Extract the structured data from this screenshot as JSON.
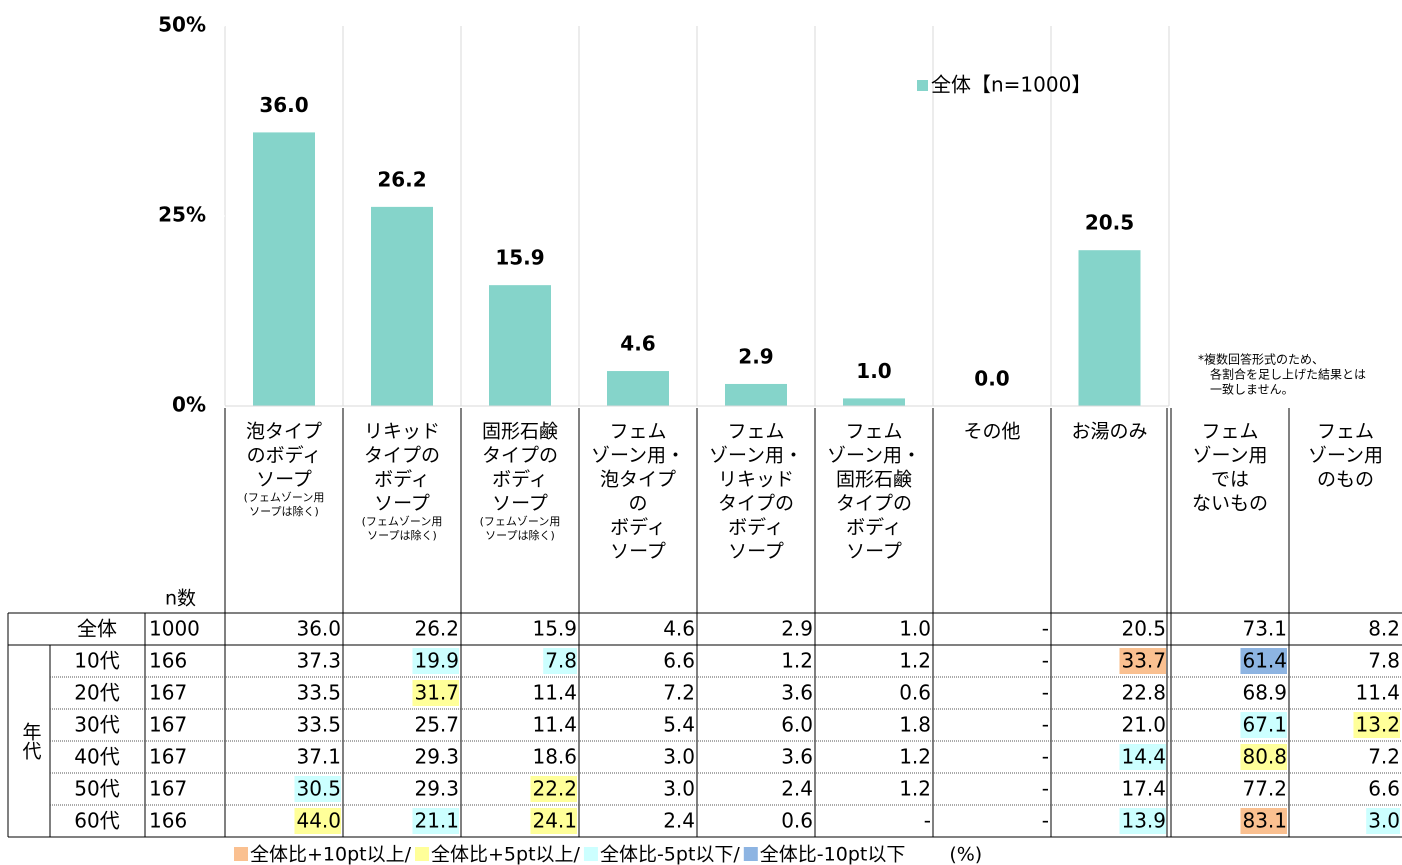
{
  "chart_data": {
    "type": "bar",
    "categories": [
      [
        "泡タイプ",
        "のボディ",
        "ソープ"
      ],
      [
        "リキッド",
        "タイプの",
        "ボディ",
        "ソープ"
      ],
      [
        "固形石鹸",
        "タイプの",
        "ボディ",
        "ソープ"
      ],
      [
        "フェム",
        "ゾーン用・",
        "泡タイプ",
        "の",
        "ボディ",
        "ソープ"
      ],
      [
        "フェム",
        "ゾーン用・",
        "リキッド",
        "タイプの",
        "ボディ",
        "ソープ"
      ],
      [
        "フェム",
        "ゾーン用・",
        "固形石鹸",
        "タイプの",
        "ボディ",
        "ソープ"
      ],
      [
        "その他"
      ],
      [
        "お湯のみ"
      ]
    ],
    "category_notes": [
      [
        "(フェムゾーン用",
        "ソープは除く)"
      ],
      [
        "(フェムゾーン用",
        "ソープは除く)"
      ],
      [
        "(フェムゾーン用",
        "ソープは除く)"
      ],
      null,
      null,
      null,
      null,
      null
    ],
    "series": [
      {
        "name": "全体【n=1000】",
        "color": "#85d4ca",
        "values": [
          36,
          26.2,
          15.9,
          4.6,
          2.9,
          1,
          0,
          20.5
        ],
        "value_labels": [
          "36.0",
          "26.2",
          "15.9",
          "4.6",
          "2.9",
          "1.0",
          "0.0",
          "20.5"
        ]
      }
    ],
    "ylim": [
      0,
      50
    ],
    "yticks": [
      {
        "value": 0,
        "label": "0%"
      },
      {
        "value": 25,
        "label": "25%"
      },
      {
        "value": 50,
        "label": "50%"
      }
    ],
    "grid": true,
    "legend": "top-right",
    "note": [
      "*複数回答形式のため、",
      "各割合を足し上げた結果とは",
      "一致しません。"
    ]
  },
  "table": {
    "extra_columns": [
      [
        "フェム",
        "ゾーン用",
        "では",
        "ないもの"
      ],
      [
        "フェム",
        "ゾーン用",
        "のもの"
      ]
    ],
    "n_header": "n数",
    "group_label": "年代",
    "rows": [
      {
        "label": "全体",
        "n": "1000",
        "values": [
          "36.0",
          "26.2",
          "15.9",
          "4.6",
          "2.9",
          "1.0",
          "-",
          "20.5",
          "73.1",
          "8.2"
        ],
        "fills": [
          null,
          null,
          null,
          null,
          null,
          null,
          null,
          null,
          null,
          null
        ]
      },
      {
        "label": "10代",
        "n": "166",
        "values": [
          "37.3",
          "19.9",
          "7.8",
          "6.6",
          "1.2",
          "1.2",
          "-",
          "33.7",
          "61.4",
          "7.8"
        ],
        "fills": [
          null,
          "#ccffff",
          "#ccffff",
          null,
          null,
          null,
          null,
          "#fac090",
          "#8db4e2",
          null
        ]
      },
      {
        "label": "20代",
        "n": "167",
        "values": [
          "33.5",
          "31.7",
          "11.4",
          "7.2",
          "3.6",
          "0.6",
          "-",
          "22.8",
          "68.9",
          "11.4"
        ],
        "fills": [
          null,
          "#ffff99",
          null,
          null,
          null,
          null,
          null,
          null,
          null,
          null
        ]
      },
      {
        "label": "30代",
        "n": "167",
        "values": [
          "33.5",
          "25.7",
          "11.4",
          "5.4",
          "6.0",
          "1.8",
          "-",
          "21.0",
          "67.1",
          "13.2"
        ],
        "fills": [
          null,
          null,
          null,
          null,
          null,
          null,
          null,
          null,
          "#ccffff",
          "#ffff99"
        ]
      },
      {
        "label": "40代",
        "n": "167",
        "values": [
          "37.1",
          "29.3",
          "18.6",
          "3.0",
          "3.6",
          "1.2",
          "-",
          "14.4",
          "80.8",
          "7.2"
        ],
        "fills": [
          null,
          null,
          null,
          null,
          null,
          null,
          null,
          "#ccffff",
          "#ffff99",
          null
        ]
      },
      {
        "label": "50代",
        "n": "167",
        "values": [
          "30.5",
          "29.3",
          "22.2",
          "3.0",
          "2.4",
          "1.2",
          "-",
          "17.4",
          "77.2",
          "6.6"
        ],
        "fills": [
          "#ccffff",
          null,
          "#ffff99",
          null,
          null,
          null,
          null,
          null,
          null,
          null
        ]
      },
      {
        "label": "60代",
        "n": "166",
        "values": [
          "44.0",
          "21.1",
          "24.1",
          "2.4",
          "0.6",
          "-",
          "-",
          "13.9",
          "83.1",
          "3.0"
        ],
        "fills": [
          "#ffff99",
          "#ccffff",
          "#ffff99",
          null,
          null,
          null,
          null,
          "#ccffff",
          "#fac090",
          "#ccffff"
        ]
      }
    ],
    "legend": [
      {
        "label": "全体比+10pt以上/",
        "color": "#fac090"
      },
      {
        "label": "全体比+5pt以上/",
        "color": "#ffff99"
      },
      {
        "label": "全体比-5pt以下/",
        "color": "#ccffff"
      },
      {
        "label": "全体比-10pt以下",
        "color": "#8db4e2"
      }
    ],
    "unit": "(%)"
  }
}
